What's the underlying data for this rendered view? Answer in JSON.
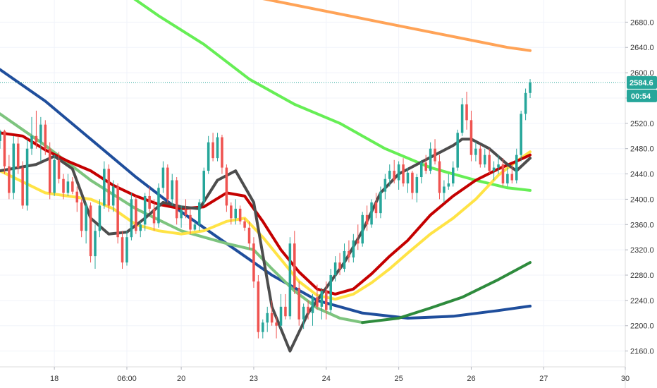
{
  "chart_data": {
    "type": "candlestick",
    "grid": true,
    "y_axis": {
      "range": [
        2135,
        2715
      ],
      "ticks": [
        2160,
        2200,
        2240,
        2280,
        2320,
        2360,
        2400,
        2440,
        2480,
        2520,
        2560,
        2600,
        2640,
        2680
      ],
      "tick_labels": [
        "2160.0",
        "2200.0",
        "2240.0",
        "2280.0",
        "2320.0",
        "2360.0",
        "2400.0",
        "2440.0",
        "2480.0",
        "2520.0",
        "2560.0",
        "2600.0",
        "2640.0",
        "2680.0"
      ]
    },
    "x_axis": {
      "range": [
        0,
        138
      ],
      "ticks": [
        12,
        28,
        40,
        56,
        72,
        88,
        104,
        120,
        138
      ],
      "tick_labels": [
        "18",
        "06:00",
        "20",
        "23",
        "24",
        "25",
        "26",
        "27",
        "30"
      ]
    },
    "last_price": {
      "value": 2584.6,
      "label": "2584.6",
      "color": "#26a69a"
    },
    "countdown": {
      "label": "00:54",
      "color": "#26a69a"
    },
    "colors": {
      "up": "#26a69a",
      "down": "#ef5350"
    },
    "candles": [
      [
        0,
        2492,
        2510,
        2480,
        2508
      ],
      [
        1,
        2508,
        2510,
        2440,
        2452
      ],
      [
        2,
        2452,
        2470,
        2400,
        2410
      ],
      [
        3,
        2410,
        2500,
        2400,
        2488
      ],
      [
        4,
        2488,
        2500,
        2440,
        2450
      ],
      [
        5,
        2450,
        2460,
        2385,
        2390
      ],
      [
        6,
        2390,
        2495,
        2382,
        2480
      ],
      [
        7,
        2480,
        2530,
        2470,
        2500
      ],
      [
        8,
        2500,
        2540,
        2480,
        2490
      ],
      [
        9,
        2490,
        2530,
        2460,
        2518
      ],
      [
        10,
        2518,
        2525,
        2470,
        2480
      ],
      [
        11,
        2480,
        2490,
        2400,
        2410
      ],
      [
        12,
        2410,
        2470,
        2405,
        2462
      ],
      [
        13,
        2462,
        2475,
        2425,
        2432
      ],
      [
        14,
        2432,
        2440,
        2400,
        2410
      ],
      [
        15,
        2410,
        2440,
        2405,
        2428
      ],
      [
        16,
        2428,
        2435,
        2408,
        2412
      ],
      [
        17,
        2412,
        2420,
        2380,
        2395
      ],
      [
        18,
        2395,
        2400,
        2340,
        2350
      ],
      [
        19,
        2350,
        2395,
        2330,
        2390
      ],
      [
        20,
        2390,
        2395,
        2300,
        2310
      ],
      [
        21,
        2310,
        2360,
        2290,
        2350
      ],
      [
        22,
        2350,
        2400,
        2340,
        2390
      ],
      [
        23,
        2390,
        2460,
        2385,
        2448
      ],
      [
        24,
        2448,
        2455,
        2380,
        2390
      ],
      [
        25,
        2390,
        2430,
        2380,
        2420
      ],
      [
        26,
        2420,
        2425,
        2330,
        2340
      ],
      [
        27,
        2340,
        2350,
        2290,
        2300
      ],
      [
        28,
        2300,
        2350,
        2295,
        2340
      ],
      [
        29,
        2340,
        2410,
        2335,
        2400
      ],
      [
        30,
        2400,
        2405,
        2345,
        2350
      ],
      [
        31,
        2350,
        2365,
        2340,
        2360
      ],
      [
        32,
        2360,
        2410,
        2350,
        2405
      ],
      [
        33,
        2405,
        2420,
        2380,
        2385
      ],
      [
        34,
        2385,
        2400,
        2350,
        2362
      ],
      [
        35,
        2362,
        2425,
        2355,
        2418
      ],
      [
        36,
        2418,
        2460,
        2410,
        2450
      ],
      [
        37,
        2450,
        2455,
        2395,
        2400
      ],
      [
        38,
        2400,
        2440,
        2390,
        2430
      ],
      [
        39,
        2430,
        2435,
        2360,
        2370
      ],
      [
        40,
        2370,
        2390,
        2355,
        2384
      ],
      [
        41,
        2384,
        2400,
        2370,
        2375
      ],
      [
        42,
        2375,
        2385,
        2345,
        2352
      ],
      [
        43,
        2352,
        2365,
        2350,
        2360
      ],
      [
        44,
        2360,
        2400,
        2350,
        2395
      ],
      [
        45,
        2395,
        2450,
        2390,
        2445
      ],
      [
        46,
        2445,
        2500,
        2440,
        2490
      ],
      [
        47,
        2490,
        2505,
        2460,
        2465
      ],
      [
        48,
        2465,
        2505,
        2460,
        2498
      ],
      [
        49,
        2498,
        2502,
        2440,
        2450
      ],
      [
        50,
        2450,
        2455,
        2380,
        2390
      ],
      [
        51,
        2390,
        2395,
        2360,
        2370
      ],
      [
        52,
        2370,
        2400,
        2360,
        2385
      ],
      [
        53,
        2385,
        2390,
        2360,
        2365
      ],
      [
        54,
        2365,
        2370,
        2350,
        2355
      ],
      [
        55,
        2355,
        2365,
        2320,
        2330
      ],
      [
        56,
        2330,
        2340,
        2260,
        2270
      ],
      [
        57,
        2270,
        2280,
        2180,
        2190
      ],
      [
        58,
        2190,
        2210,
        2180,
        2205
      ],
      [
        59,
        2205,
        2230,
        2190,
        2220
      ],
      [
        60,
        2220,
        2240,
        2200,
        2205
      ],
      [
        61,
        2205,
        2215,
        2180,
        2200
      ],
      [
        62,
        2200,
        2250,
        2195,
        2230
      ],
      [
        63,
        2230,
        2250,
        2210,
        2215
      ],
      [
        64,
        2215,
        2340,
        2210,
        2330
      ],
      [
        65,
        2330,
        2350,
        2250,
        2260
      ],
      [
        66,
        2260,
        2270,
        2200,
        2210
      ],
      [
        67,
        2210,
        2235,
        2195,
        2230
      ],
      [
        68,
        2230,
        2240,
        2210,
        2220
      ],
      [
        69,
        2220,
        2250,
        2200,
        2245
      ],
      [
        70,
        2245,
        2265,
        2225,
        2230
      ],
      [
        71,
        2230,
        2260,
        2210,
        2255
      ],
      [
        72,
        2255,
        2270,
        2210,
        2225
      ],
      [
        73,
        2225,
        2290,
        2220,
        2280
      ],
      [
        74,
        2280,
        2310,
        2270,
        2300
      ],
      [
        75,
        2300,
        2315,
        2280,
        2290
      ],
      [
        76,
        2290,
        2330,
        2285,
        2318
      ],
      [
        77,
        2318,
        2335,
        2300,
        2308
      ],
      [
        78,
        2308,
        2345,
        2300,
        2335
      ],
      [
        79,
        2335,
        2360,
        2320,
        2330
      ],
      [
        80,
        2330,
        2380,
        2325,
        2375
      ],
      [
        81,
        2375,
        2390,
        2350,
        2360
      ],
      [
        82,
        2360,
        2400,
        2355,
        2395
      ],
      [
        83,
        2395,
        2410,
        2370,
        2378
      ],
      [
        84,
        2378,
        2420,
        2370,
        2412
      ],
      [
        85,
        2412,
        2440,
        2400,
        2432
      ],
      [
        86,
        2432,
        2455,
        2420,
        2445
      ],
      [
        87,
        2445,
        2462,
        2425,
        2430
      ],
      [
        88,
        2430,
        2460,
        2415,
        2455
      ],
      [
        89,
        2455,
        2465,
        2420,
        2425
      ],
      [
        90,
        2425,
        2450,
        2410,
        2442
      ],
      [
        91,
        2442,
        2445,
        2400,
        2410
      ],
      [
        92,
        2410,
        2440,
        2395,
        2435
      ],
      [
        93,
        2435,
        2462,
        2425,
        2458
      ],
      [
        94,
        2458,
        2470,
        2440,
        2445
      ],
      [
        95,
        2445,
        2490,
        2440,
        2480
      ],
      [
        96,
        2480,
        2495,
        2455,
        2460
      ],
      [
        97,
        2460,
        2470,
        2400,
        2410
      ],
      [
        98,
        2410,
        2430,
        2395,
        2420
      ],
      [
        99,
        2420,
        2440,
        2415,
        2425
      ],
      [
        100,
        2425,
        2460,
        2420,
        2450
      ],
      [
        101,
        2450,
        2510,
        2445,
        2505
      ],
      [
        102,
        2505,
        2560,
        2500,
        2550
      ],
      [
        103,
        2550,
        2570,
        2510,
        2525
      ],
      [
        104,
        2525,
        2540,
        2460,
        2470
      ],
      [
        105,
        2470,
        2490,
        2460,
        2480
      ],
      [
        106,
        2480,
        2485,
        2450,
        2455
      ],
      [
        107,
        2455,
        2480,
        2450,
        2470
      ],
      [
        108,
        2470,
        2480,
        2440,
        2445
      ],
      [
        109,
        2445,
        2460,
        2430,
        2450
      ],
      [
        110,
        2450,
        2470,
        2440,
        2455
      ],
      [
        111,
        2455,
        2465,
        2420,
        2425
      ],
      [
        112,
        2425,
        2450,
        2420,
        2440
      ],
      [
        113,
        2440,
        2455,
        2425,
        2430
      ],
      [
        114,
        2430,
        2480,
        2425,
        2470
      ],
      [
        115,
        2470,
        2540,
        2460,
        2535
      ],
      [
        116,
        2535,
        2575,
        2525,
        2568
      ],
      [
        117,
        2568,
        2590,
        2560,
        2584.6
      ]
    ],
    "series": [
      {
        "color": "#ffa357",
        "points": [
          [
            56,
            2720
          ],
          [
            70,
            2700
          ],
          [
            84,
            2680
          ],
          [
            98,
            2660
          ],
          [
            112,
            2640
          ],
          [
            117,
            2635
          ]
        ]
      },
      {
        "color": "#66ee55",
        "points": [
          [
            26,
            2735
          ],
          [
            35,
            2690
          ],
          [
            45,
            2645
          ],
          [
            55,
            2590
          ],
          [
            65,
            2550
          ],
          [
            75,
            2520
          ],
          [
            85,
            2480
          ],
          [
            95,
            2450
          ],
          [
            105,
            2430
          ],
          [
            112,
            2418
          ],
          [
            117,
            2414
          ]
        ]
      },
      {
        "color": "#1f4e9c",
        "points": [
          [
            0,
            2605
          ],
          [
            10,
            2555
          ],
          [
            20,
            2495
          ],
          [
            30,
            2435
          ],
          [
            40,
            2380
          ],
          [
            50,
            2330
          ],
          [
            60,
            2280
          ],
          [
            70,
            2240
          ],
          [
            80,
            2220
          ],
          [
            90,
            2212
          ],
          [
            100,
            2215
          ],
          [
            110,
            2224
          ],
          [
            117,
            2231
          ]
        ]
      },
      {
        "color": "#7dc47e",
        "points": [
          [
            0,
            2535
          ],
          [
            10,
            2485
          ],
          [
            20,
            2430
          ],
          [
            30,
            2385
          ],
          [
            40,
            2350
          ],
          [
            50,
            2330
          ],
          [
            56,
            2320
          ],
          [
            60,
            2290
          ],
          [
            65,
            2255
          ],
          [
            70,
            2228
          ],
          [
            75,
            2212
          ],
          [
            80,
            2205
          ]
        ]
      },
      {
        "color": "#2e8b3d",
        "points": [
          [
            80,
            2205
          ],
          [
            88,
            2212
          ],
          [
            95,
            2228
          ],
          [
            102,
            2245
          ],
          [
            110,
            2273
          ],
          [
            117,
            2300
          ]
        ]
      },
      {
        "color": "#ffe345",
        "points": [
          [
            0,
            2445
          ],
          [
            10,
            2410
          ],
          [
            20,
            2400
          ],
          [
            25,
            2385
          ],
          [
            30,
            2360
          ],
          [
            35,
            2350
          ],
          [
            40,
            2345
          ],
          [
            45,
            2350
          ],
          [
            50,
            2365
          ],
          [
            54,
            2370
          ],
          [
            58,
            2340
          ],
          [
            62,
            2305
          ],
          [
            66,
            2270
          ],
          [
            70,
            2248
          ],
          [
            74,
            2242
          ],
          [
            78,
            2250
          ],
          [
            82,
            2268
          ],
          [
            86,
            2290
          ],
          [
            90,
            2315
          ],
          [
            95,
            2345
          ],
          [
            100,
            2370
          ],
          [
            105,
            2400
          ],
          [
            110,
            2438
          ],
          [
            114,
            2460
          ],
          [
            117,
            2475
          ]
        ]
      },
      {
        "color": "#c40000",
        "points": [
          [
            0,
            2505
          ],
          [
            5,
            2500
          ],
          [
            10,
            2478
          ],
          [
            15,
            2460
          ],
          [
            20,
            2445
          ],
          [
            25,
            2422
          ],
          [
            30,
            2405
          ],
          [
            35,
            2392
          ],
          [
            40,
            2385
          ],
          [
            45,
            2388
          ],
          [
            50,
            2410
          ],
          [
            54,
            2405
          ],
          [
            58,
            2365
          ],
          [
            62,
            2320
          ],
          [
            66,
            2285
          ],
          [
            70,
            2258
          ],
          [
            74,
            2250
          ],
          [
            78,
            2258
          ],
          [
            82,
            2282
          ],
          [
            86,
            2310
          ],
          [
            90,
            2335
          ],
          [
            95,
            2375
          ],
          [
            100,
            2405
          ],
          [
            105,
            2430
          ],
          [
            110,
            2448
          ],
          [
            114,
            2460
          ],
          [
            117,
            2470
          ]
        ]
      },
      {
        "color": "#4d4d4d",
        "points": [
          [
            0,
            2445
          ],
          [
            4,
            2450
          ],
          [
            8,
            2455
          ],
          [
            12,
            2468
          ],
          [
            16,
            2448
          ],
          [
            20,
            2370
          ],
          [
            24,
            2345
          ],
          [
            28,
            2348
          ],
          [
            32,
            2370
          ],
          [
            36,
            2395
          ],
          [
            40,
            2388
          ],
          [
            44,
            2385
          ],
          [
            48,
            2430
          ],
          [
            52,
            2445
          ],
          [
            56,
            2395
          ],
          [
            60,
            2230
          ],
          [
            64,
            2160
          ],
          [
            68,
            2220
          ],
          [
            72,
            2260
          ],
          [
            76,
            2300
          ],
          [
            80,
            2350
          ],
          [
            84,
            2410
          ],
          [
            88,
            2440
          ],
          [
            92,
            2455
          ],
          [
            96,
            2470
          ],
          [
            100,
            2485
          ],
          [
            102,
            2495
          ],
          [
            104,
            2495
          ],
          [
            108,
            2480
          ],
          [
            112,
            2455
          ],
          [
            114,
            2445
          ],
          [
            117,
            2465
          ]
        ]
      }
    ]
  }
}
